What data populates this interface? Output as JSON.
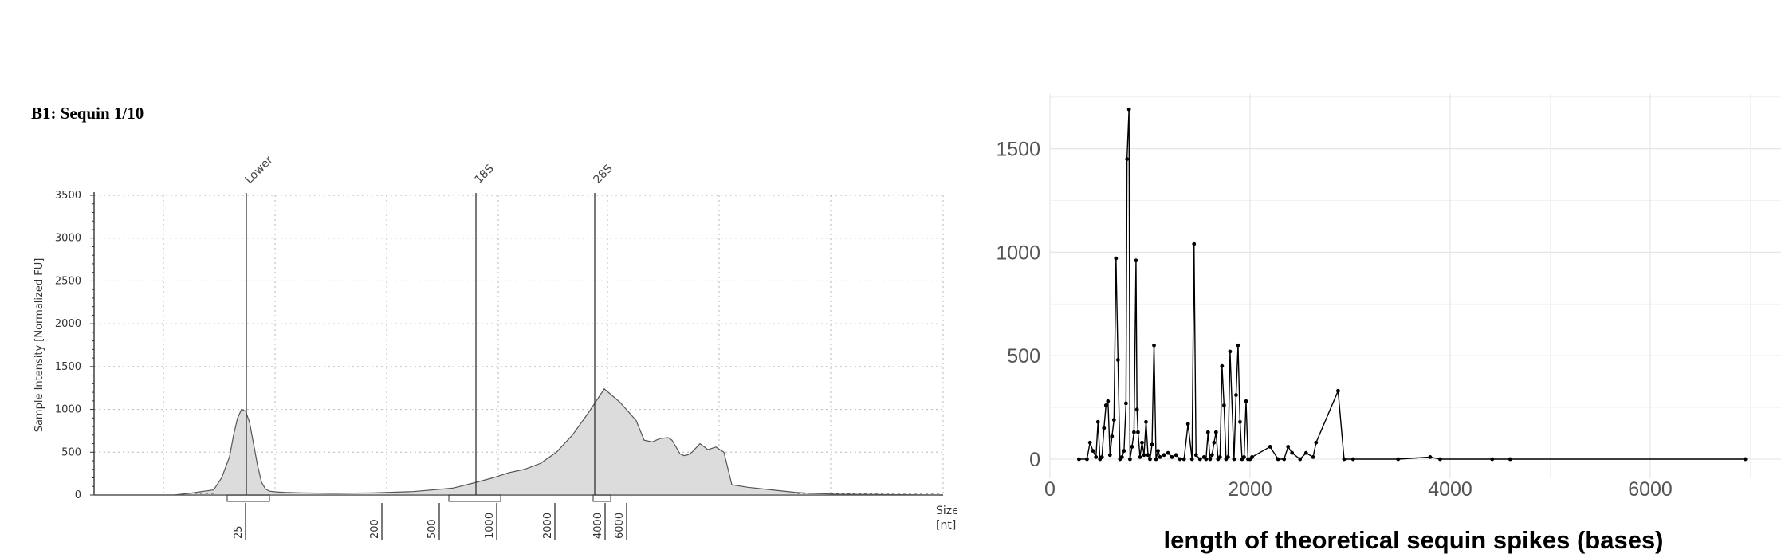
{
  "left_panel_title": "B1: Sequin 1/10",
  "chart_data": [
    {
      "type": "area",
      "title": "B1: Sequin 1/10",
      "ylabel": "Sample Intensity [Normalized FU]",
      "xlabel": [
        "Size",
        "[nt]"
      ],
      "ylim": [
        0,
        3500
      ],
      "yticks": [
        0,
        500,
        1000,
        1500,
        2000,
        2500,
        3000,
        3500
      ],
      "grid": true,
      "markers": [
        "Lower",
        "18S",
        "28S"
      ],
      "ladder_ticks": [
        "25",
        "200",
        "500",
        "1000",
        "2000",
        "4000",
        "6000"
      ],
      "trace": {
        "x": [
          0,
          20,
          40,
          60,
          80,
          100,
          120,
          150,
          160,
          170,
          175,
          180,
          185,
          190,
          195,
          200,
          205,
          210,
          215,
          220,
          230,
          240,
          260,
          300,
          350,
          400,
          450,
          480,
          500,
          520,
          540,
          560,
          580,
          600,
          620,
          640,
          660,
          680,
          690,
          700,
          710,
          720,
          725,
          730,
          735,
          740,
          745,
          750,
          760,
          770,
          780,
          790,
          800,
          820,
          840,
          860,
          880,
          900,
          930,
          1000,
          1060
        ],
        "y": [
          0,
          0,
          0,
          0,
          0,
          0,
          20,
          60,
          200,
          450,
          700,
          900,
          1000,
          980,
          850,
          600,
          350,
          150,
          70,
          45,
          35,
          30,
          25,
          20,
          25,
          40,
          80,
          150,
          200,
          260,
          300,
          370,
          500,
          700,
          960,
          1240,
          1080,
          870,
          640,
          620,
          660,
          670,
          640,
          560,
          480,
          460,
          470,
          500,
          600,
          530,
          560,
          500,
          120,
          90,
          70,
          50,
          30,
          20,
          10,
          5,
          0
        ]
      }
    },
    {
      "type": "line",
      "xlabel": "length of theoretical sequin spikes (bases)",
      "ylabel": "",
      "xlim": [
        0,
        7000
      ],
      "ylim": [
        0,
        1700
      ],
      "xticks": [
        0,
        2000,
        4000,
        6000
      ],
      "yticks": [
        0,
        500,
        1000,
        1500
      ],
      "grid": true,
      "x": [
        290,
        370,
        400,
        430,
        460,
        480,
        500,
        520,
        540,
        560,
        580,
        600,
        620,
        640,
        660,
        680,
        700,
        720,
        740,
        760,
        770,
        790,
        800,
        820,
        840,
        860,
        870,
        880,
        900,
        920,
        940,
        960,
        980,
        1000,
        1020,
        1040,
        1060,
        1080,
        1100,
        1140,
        1180,
        1220,
        1260,
        1300,
        1340,
        1380,
        1420,
        1440,
        1460,
        1500,
        1540,
        1560,
        1580,
        1600,
        1620,
        1640,
        1660,
        1680,
        1700,
        1720,
        1740,
        1760,
        1780,
        1800,
        1840,
        1860,
        1880,
        1900,
        1920,
        1940,
        1960,
        1980,
        2000,
        2020,
        2200,
        2280,
        2340,
        2380,
        2420,
        2500,
        2560,
        2630,
        2660,
        2880,
        2940,
        3030,
        3480,
        3800,
        3900,
        4420,
        4600,
        6950
      ],
      "y": [
        0,
        0,
        80,
        40,
        10,
        180,
        0,
        10,
        150,
        260,
        280,
        20,
        110,
        190,
        970,
        480,
        0,
        10,
        40,
        270,
        1450,
        1690,
        0,
        60,
        130,
        960,
        240,
        130,
        10,
        80,
        20,
        180,
        20,
        0,
        70,
        550,
        0,
        40,
        10,
        20,
        30,
        10,
        20,
        0,
        0,
        170,
        0,
        1040,
        20,
        0,
        10,
        0,
        130,
        0,
        20,
        80,
        130,
        0,
        10,
        450,
        260,
        0,
        10,
        520,
        0,
        310,
        550,
        180,
        0,
        10,
        280,
        0,
        0,
        10,
        60,
        0,
        0,
        60,
        30,
        0,
        30,
        10,
        80,
        330,
        0,
        0,
        0,
        10,
        0,
        0,
        0,
        0
      ]
    }
  ]
}
